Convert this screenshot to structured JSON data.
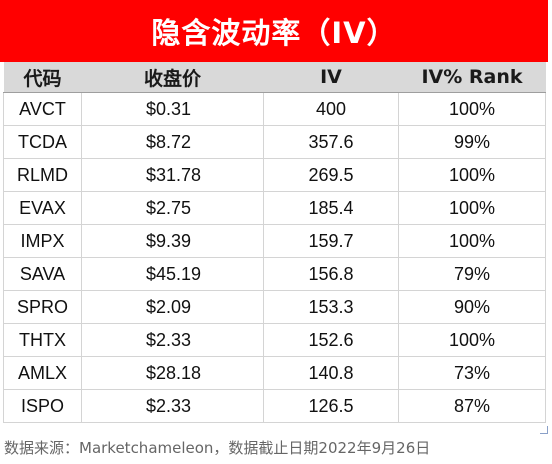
{
  "title": "隐含波动率（IV）",
  "colors": {
    "title_bg": "#ff0000",
    "title_text": "#ffffff",
    "header_bg": "#d9d9d9"
  },
  "table": {
    "headers": [
      "代码",
      "收盘价",
      "IV",
      "IV% Rank"
    ],
    "rows": [
      [
        "AVCT",
        "$0.31",
        "400",
        "100%"
      ],
      [
        "TCDA",
        "$8.72",
        "357.6",
        "99%"
      ],
      [
        "RLMD",
        "$31.78",
        "269.5",
        "100%"
      ],
      [
        "EVAX",
        "$2.75",
        "185.4",
        "100%"
      ],
      [
        "IMPX",
        "$9.39",
        "159.7",
        "100%"
      ],
      [
        "SAVA",
        "$45.19",
        "156.8",
        "79%"
      ],
      [
        "SPRO",
        "$2.09",
        "153.3",
        "90%"
      ],
      [
        "THTX",
        "$2.33",
        "152.6",
        "100%"
      ],
      [
        "AMLX",
        "$28.18",
        "140.8",
        "73%"
      ],
      [
        "ISPO",
        "$2.33",
        "126.5",
        "87%"
      ]
    ]
  },
  "source_note": "数据来源：Marketchameleon，数据截止日期2022年9月26日"
}
